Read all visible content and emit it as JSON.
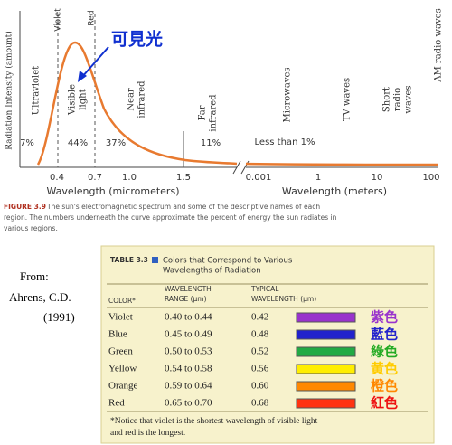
{
  "figure": {
    "y_axis_label": "Radiation Intensity (amount)",
    "markers": [
      "Violet",
      "Red"
    ],
    "regions": [
      [
        "Ultraviolet"
      ],
      [
        "Visible",
        "light"
      ],
      [
        "Near",
        "infrared"
      ],
      [
        "Far",
        "infrared"
      ],
      [
        "Microwaves"
      ],
      [
        "TV waves"
      ],
      [
        "Short",
        "radio",
        "waves"
      ],
      [
        "AM radio waves"
      ]
    ],
    "percents": [
      "7%",
      "44%",
      "37%",
      "11%",
      "Less than 1%"
    ],
    "x_ticks_micrometers": [
      "0.4",
      "0.7",
      "1.0",
      "1.5"
    ],
    "x_ticks_meters": [
      "0.001",
      "1",
      "10",
      "100"
    ],
    "x_label_left": "Wavelength (micrometers)",
    "x_label_right": "Wavelength (meters)",
    "annotation": "可見光",
    "caption_label": "FIGURE 3.9",
    "caption": [
      "The sun's electromagnetic spectrum and some of the descriptive names of each",
      "region. The numbers underneath the curve approximate the percent of energy the sun radiates in",
      "various regions."
    ]
  },
  "source": [
    "From:",
    "Ahrens, C.D.",
    "(1991)"
  ],
  "table": {
    "label": "TABLE 3.3",
    "title": [
      "Colors that Correspond to Various",
      "Wavelengths of Radiation"
    ],
    "headers": [
      [
        "COLOR*"
      ],
      [
        "WAVELENGTH",
        "RANGE (µm)"
      ],
      [
        "TYPICAL",
        "WAVELENGTH (µm)"
      ]
    ],
    "rows": [
      [
        "Violet",
        "0.40 to 0.44",
        "0.42"
      ],
      [
        "Blue",
        "0.45 to 0.49",
        "0.48"
      ],
      [
        "Green",
        "0.50 to 0.53",
        "0.52"
      ],
      [
        "Yellow",
        "0.54 to 0.58",
        "0.56"
      ],
      [
        "Orange",
        "0.59 to 0.64",
        "0.60"
      ],
      [
        "Red",
        "0.65 to 0.70",
        "0.68"
      ]
    ],
    "note": [
      "*Notice that violet is the shortest wavelength of visible light",
      "and red is the longest."
    ]
  },
  "chinese_names": [
    "紫色",
    "藍色",
    "綠色",
    "黃色",
    "橙色",
    "紅色"
  ]
}
